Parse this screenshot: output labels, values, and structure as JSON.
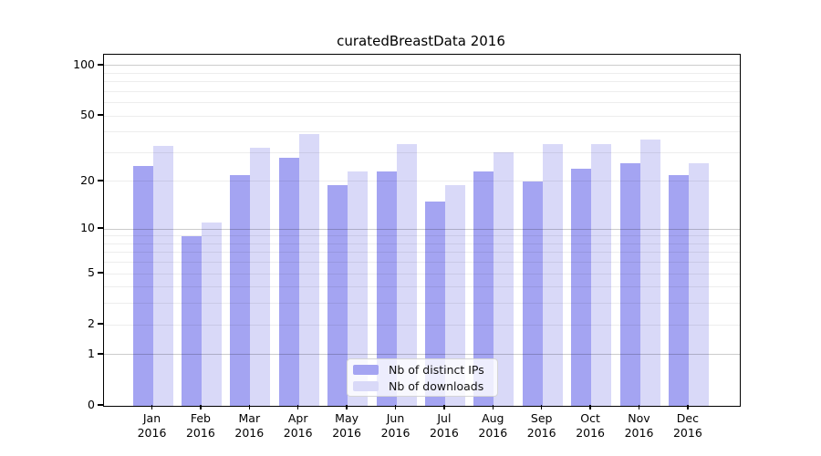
{
  "chart_data": {
    "type": "bar",
    "title": "curatedBreastData 2016",
    "yscale": "log1p",
    "categories": [
      "Jan",
      "Feb",
      "Mar",
      "Apr",
      "May",
      "Jun",
      "Jul",
      "Aug",
      "Sep",
      "Oct",
      "Nov",
      "Dec"
    ],
    "xtick_year": "2016",
    "series": [
      {
        "name": "Nb of distinct IPs",
        "color": "#a4a4f2",
        "values": [
          25,
          9,
          22,
          28,
          19,
          23,
          15,
          23,
          20,
          24,
          26,
          22
        ]
      },
      {
        "name": "Nb of downloads",
        "color": "#d9d9f8",
        "values": [
          33,
          11,
          32,
          39,
          23,
          34,
          19,
          30,
          34,
          34,
          36,
          26
        ]
      }
    ],
    "ytick_values": [
      100,
      50,
      20,
      10,
      5,
      2,
      1,
      0
    ],
    "ytick_labels": [
      "100",
      "50",
      "20",
      "10",
      "5",
      "2",
      "1",
      "0"
    ],
    "minor_grid_values": [
      2,
      3,
      4,
      5,
      6,
      7,
      8,
      9,
      20,
      30,
      40,
      50,
      60,
      70,
      80,
      90
    ],
    "major_grid_values": [
      1,
      10,
      100
    ],
    "grid_minor_color": "rgba(0,0,0,0.07)",
    "grid_major_color": "rgba(0,0,0,0.20)",
    "legend_position": "lower center",
    "ylim": [
      0,
      110
    ]
  }
}
